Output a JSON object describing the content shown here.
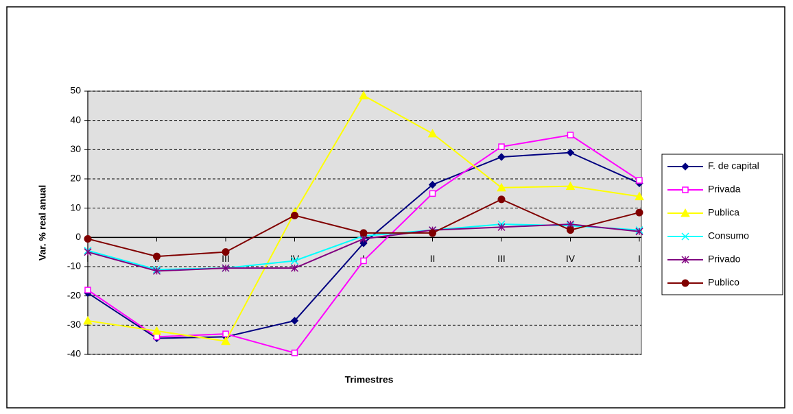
{
  "chart_data": {
    "type": "line",
    "x_label": "Trimestres",
    "y_label": "Var. % real anual",
    "categories": [
      "I",
      "II",
      "III",
      "IV",
      "I",
      "II",
      "III",
      "IV",
      "I"
    ],
    "series": [
      {
        "name": "F. de capital",
        "color": "#000080",
        "marker": "diamond",
        "values": [
          -19,
          -34.5,
          -34,
          -28.5,
          -2,
          18,
          27.5,
          29,
          18.5
        ]
      },
      {
        "name": "Privada",
        "color": "#ff00ff",
        "marker": "square",
        "values": [
          -18,
          -34,
          -33,
          -39.5,
          -8,
          15,
          31,
          35,
          19.5
        ]
      },
      {
        "name": "Publica",
        "color": "#ffff00",
        "marker": "triangle",
        "values": [
          -28.5,
          -32,
          -35.5,
          8.5,
          48.5,
          35.5,
          17,
          17.5,
          14
        ]
      },
      {
        "name": "Consumo",
        "color": "#00ffff",
        "marker": "x",
        "values": [
          -4.5,
          -11,
          -10.5,
          -8,
          0.5,
          2.5,
          4.5,
          4,
          2.5
        ]
      },
      {
        "name": "Privado",
        "color": "#800080",
        "marker": "star",
        "values": [
          -5,
          -11.5,
          -10.5,
          -10.5,
          -0.5,
          2.5,
          3.5,
          4.5,
          2
        ]
      },
      {
        "name": "Publico",
        "color": "#800000",
        "marker": "circle",
        "values": [
          -0.5,
          -6.5,
          -5,
          7.5,
          1.5,
          1.5,
          13,
          2.5,
          8.5
        ]
      }
    ],
    "ylim": [
      -40,
      50
    ],
    "yticks": [
      -40,
      -30,
      -20,
      -10,
      0,
      10,
      20,
      30,
      40,
      50
    ],
    "grid": true,
    "legend": "right"
  }
}
